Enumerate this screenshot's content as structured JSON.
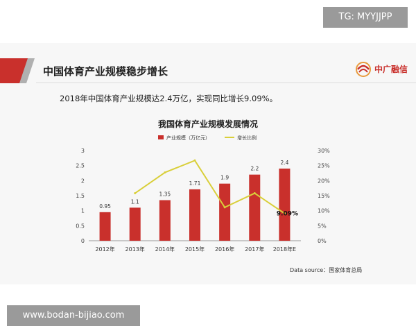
{
  "slide": {
    "title": "中国体育产业规模稳步增长",
    "logo_text": "中广融信",
    "subtitle": "2018年中国体育产业规模达2.4万亿，实现同比增长9.09%。",
    "source": "Data source：国家体育总局"
  },
  "watermarks": {
    "top": "TG: MYYJJPP",
    "bottom": "www.bodan-bijiao.com"
  },
  "colors": {
    "brand_red": "#c9302c",
    "line_yellow": "#d9cf3a",
    "accent_gray": "#b0b0b0"
  },
  "chart_data": {
    "type": "bar",
    "title": "我国体育产业规模发展情况",
    "categories": [
      "2012年",
      "2013年",
      "2014年",
      "2015年",
      "2016年",
      "2017年",
      "2018年E"
    ],
    "series": [
      {
        "name": "产业规模（万亿元）",
        "type": "bar",
        "axis": "left",
        "values": [
          0.95,
          1.1,
          1.35,
          1.71,
          1.9,
          2.2,
          2.4
        ],
        "labels": [
          "0.95",
          "1.1",
          "1.35",
          "1.71",
          "1.9",
          "2.2",
          "2.4"
        ]
      },
      {
        "name": "增长比例",
        "type": "line",
        "axis": "right",
        "values": [
          null,
          15.8,
          22.7,
          26.7,
          11.1,
          15.8,
          9.09
        ],
        "annotation": "9.09%"
      }
    ],
    "y_left": {
      "min": 0,
      "max": 3,
      "ticks": [
        "0",
        "0.5",
        "1",
        "1.5",
        "2",
        "2.5",
        "3"
      ]
    },
    "y_right": {
      "min": 0,
      "max": 30,
      "ticks": [
        "0%",
        "5%",
        "10%",
        "15%",
        "20%",
        "25%",
        "30%"
      ]
    },
    "grid": false,
    "legend": "top"
  }
}
